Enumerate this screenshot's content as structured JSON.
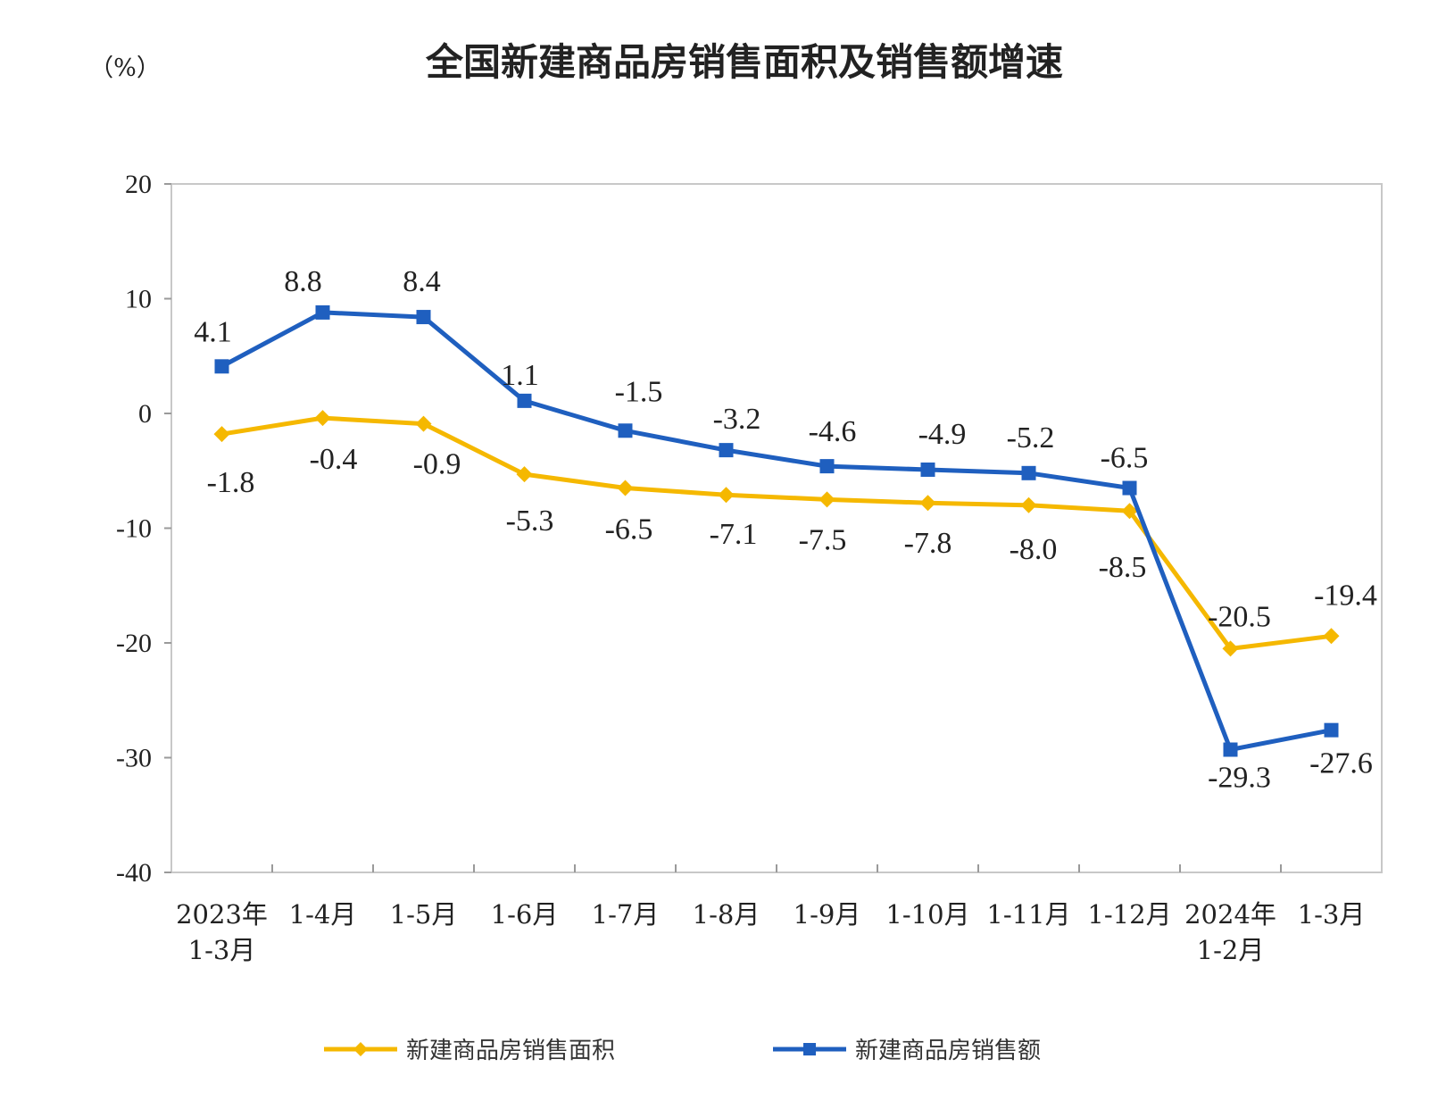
{
  "chart_data": {
    "type": "line",
    "title": "全国新建商品房销售面积及销售额增速",
    "unit_label": "（%）",
    "categories": [
      [
        "2023年",
        "1-3月"
      ],
      [
        "1-4月"
      ],
      [
        "1-5月"
      ],
      [
        "1-6月"
      ],
      [
        "1-7月"
      ],
      [
        "1-8月"
      ],
      [
        "1-9月"
      ],
      [
        "1-10月"
      ],
      [
        "1-11月"
      ],
      [
        "1-12月"
      ],
      [
        "2024年",
        "1-2月"
      ],
      [
        "1-3月"
      ]
    ],
    "ylim": [
      -40,
      20
    ],
    "yticks": [
      20,
      10,
      0,
      -10,
      -20,
      -30,
      -40
    ],
    "grid": false,
    "legend_position": "bottom",
    "series": [
      {
        "name": "新建商品房销售面积",
        "color": "#F5B800",
        "marker": "diamond",
        "values": [
          -1.8,
          -0.4,
          -0.9,
          -5.3,
          -6.5,
          -7.1,
          -7.5,
          -7.8,
          -8.0,
          -8.5,
          -20.5,
          -19.4
        ],
        "labels": [
          "-1.8",
          "-0.4",
          "-0.9",
          "-5.3",
          "-6.5",
          "-7.1",
          "-7.5",
          "-7.8",
          "-8.0",
          "-8.5",
          "-20.5",
          "-19.4"
        ]
      },
      {
        "name": "新建商品房销售额",
        "color": "#1F5FBF",
        "marker": "square",
        "values": [
          4.1,
          8.8,
          8.4,
          1.1,
          -1.5,
          -3.2,
          -4.6,
          -4.9,
          -5.2,
          -6.5,
          -29.3,
          -27.6
        ],
        "labels": [
          "4.1",
          "8.8",
          "8.4",
          "1.1",
          "-1.5",
          "-3.2",
          "-4.6",
          "-4.9",
          "-5.2",
          "-6.5",
          "-29.3",
          "-27.6"
        ]
      }
    ]
  }
}
